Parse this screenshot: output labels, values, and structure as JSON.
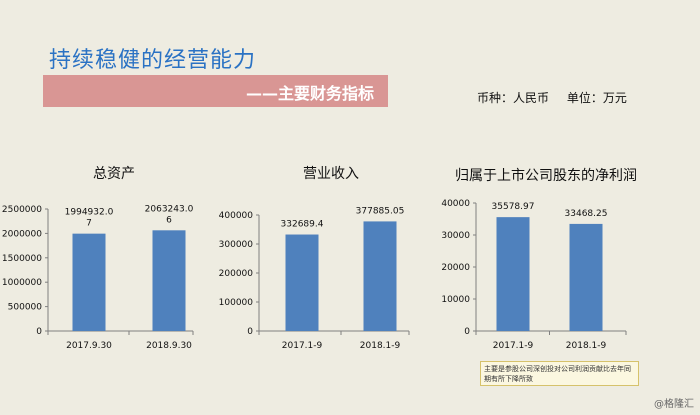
{
  "slide": {
    "title": "持续稳健的经营能力",
    "subtitle": "——主要财务指标",
    "currency": "币种：人民币",
    "unit": "单位：万元",
    "note": "主要是参股公司深创投对公司利润贡献比去年同期有所下降所致",
    "watermark": "@格隆汇"
  },
  "colors": {
    "bar": "#4f81bd",
    "title": "#2a72c4",
    "band": "#d99694",
    "background": "#eeece1"
  },
  "chart_data": [
    {
      "type": "bar",
      "title": "总资产",
      "categories": [
        "2017.9.30",
        "2018.9.30"
      ],
      "values": [
        1994932.07,
        2063243.06
      ],
      "data_labels": [
        [
          "1994932.0",
          "7"
        ],
        [
          "2063243.0",
          "6"
        ]
      ],
      "ylim": [
        0,
        2500000
      ],
      "yticks": [
        0,
        500000,
        1000000,
        1500000,
        2000000,
        2500000
      ]
    },
    {
      "type": "bar",
      "title": "营业收入",
      "categories": [
        "2017.1-9",
        "2018.1-9"
      ],
      "values": [
        332689.4,
        377885.05
      ],
      "data_labels": [
        [
          "332689.4"
        ],
        [
          "377885.05"
        ]
      ],
      "ylim": [
        0,
        400000
      ],
      "yticks": [
        0,
        100000,
        200000,
        300000,
        400000
      ]
    },
    {
      "type": "bar",
      "title": "归属于上市公司股东的净利润",
      "categories": [
        "2017.1-9",
        "2018.1-9"
      ],
      "values": [
        35578.97,
        33468.25
      ],
      "data_labels": [
        [
          "35578.97"
        ],
        [
          "33468.25"
        ]
      ],
      "ylim": [
        0,
        40000
      ],
      "yticks": [
        0,
        10000,
        20000,
        30000,
        40000
      ]
    }
  ]
}
